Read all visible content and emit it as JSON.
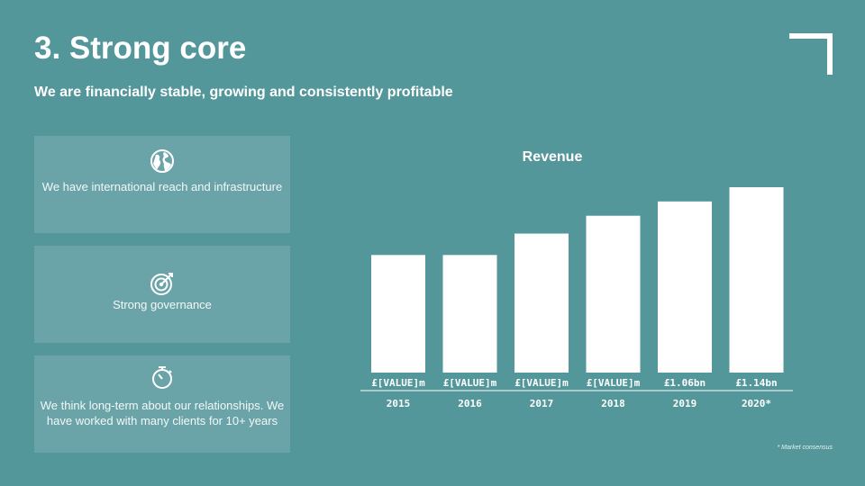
{
  "slide": {
    "title": "3. Strong core",
    "subtitle": "We are financially stable, growing and consistently profitable"
  },
  "cards": [
    {
      "icon": "globe-icon",
      "text": "We have international reach and infrastructure"
    },
    {
      "icon": "target-icon",
      "text": "Strong governance"
    },
    {
      "icon": "stopwatch-icon",
      "text": "We think long-term about our relationships. We have worked with many clients for 10+ years"
    }
  ],
  "chart_title": "Revenue",
  "chart_data": {
    "type": "bar",
    "title": "Revenue",
    "categories": [
      "2015",
      "2016",
      "2017",
      "2018",
      "2019",
      "2020*"
    ],
    "values": [
      0.76,
      0.76,
      0.88,
      0.98,
      1.06,
      1.14
    ],
    "value_labels": [
      "£[VALUE]m",
      "£[VALUE]m",
      "£[VALUE]m",
      "£[VALUE]m",
      "£1.06bn",
      "£1.14bn"
    ],
    "ylim": [
      0,
      1.14
    ],
    "grid": false,
    "legend": "none"
  },
  "footnote": "* Market consensus",
  "colors": {
    "background": "#53979b",
    "card": "#6aa4a8",
    "bar": "#ffffff",
    "text": "#ffffff"
  }
}
